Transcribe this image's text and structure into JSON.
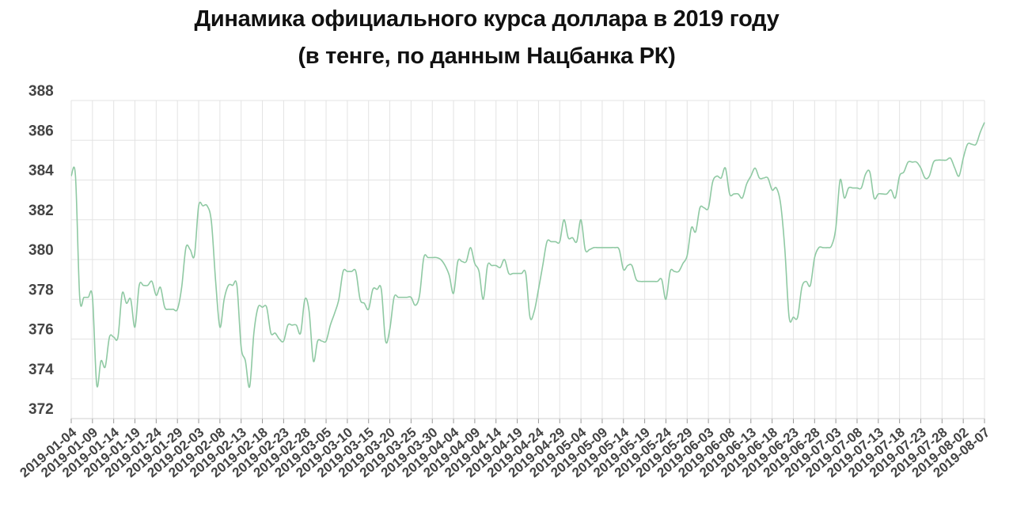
{
  "chart_data": {
    "type": "line",
    "title": "Динамика официального курса доллара в 2019 году",
    "subtitle": "(в тенге, по данным Нацбанка РК)",
    "xlabel": "",
    "ylabel": "",
    "ylim": [
      372,
      388
    ],
    "yticks": [
      372,
      374,
      376,
      378,
      380,
      382,
      384,
      386,
      388
    ],
    "x_start": "2019-01-04",
    "x_end": "2019-08-07",
    "xtick_labels": [
      "2019-01-04",
      "2019-01-09",
      "2019-01-14",
      "2019-01-19",
      "2019-01-24",
      "2019-01-29",
      "2019-02-03",
      "2019-02-08",
      "2019-02-13",
      "2019-02-18",
      "2019-02-23",
      "2019-02-28",
      "2019-03-05",
      "2019-03-10",
      "2019-03-15",
      "2019-03-20",
      "2019-03-25",
      "2019-03-30",
      "2019-04-04",
      "2019-04-09",
      "2019-04-14",
      "2019-04-19",
      "2019-04-24",
      "2019-04-29",
      "2019-05-04",
      "2019-05-09",
      "2019-05-14",
      "2019-05-19",
      "2019-05-24",
      "2019-05-29",
      "2019-06-03",
      "2019-06-08",
      "2019-06-13",
      "2019-06-18",
      "2019-06-23",
      "2019-06-28",
      "2019-07-03",
      "2019-07-08",
      "2019-07-13",
      "2019-07-18",
      "2019-07-23",
      "2019-07-28",
      "2019-08-02",
      "2019-08-07"
    ],
    "grid": true,
    "line_color": "#8fc9a3",
    "series": [
      {
        "name": "",
        "points": [
          [
            "2019-01-04",
            384.2
          ],
          [
            "2019-01-05",
            384.2
          ],
          [
            "2019-01-06",
            378.1
          ],
          [
            "2019-01-07",
            378.1
          ],
          [
            "2019-01-08",
            378.1
          ],
          [
            "2019-01-09",
            378.1
          ],
          [
            "2019-01-10",
            373.7
          ],
          [
            "2019-01-11",
            374.9
          ],
          [
            "2019-01-12",
            374.6
          ],
          [
            "2019-01-13",
            376.1
          ],
          [
            "2019-01-14",
            376.1
          ],
          [
            "2019-01-15",
            376.1
          ],
          [
            "2019-01-16",
            378.3
          ],
          [
            "2019-01-17",
            377.8
          ],
          [
            "2019-01-18",
            378.0
          ],
          [
            "2019-01-19",
            376.6
          ],
          [
            "2019-01-20",
            378.7
          ],
          [
            "2019-01-21",
            378.7
          ],
          [
            "2019-01-22",
            378.7
          ],
          [
            "2019-01-23",
            378.9
          ],
          [
            "2019-01-24",
            378.2
          ],
          [
            "2019-01-25",
            378.6
          ],
          [
            "2019-01-26",
            377.6
          ],
          [
            "2019-01-27",
            377.5
          ],
          [
            "2019-01-28",
            377.5
          ],
          [
            "2019-01-29",
            377.5
          ],
          [
            "2019-01-30",
            378.6
          ],
          [
            "2019-01-31",
            380.6
          ],
          [
            "2019-02-01",
            380.5
          ],
          [
            "2019-02-02",
            380.2
          ],
          [
            "2019-02-03",
            382.7
          ],
          [
            "2019-02-04",
            382.7
          ],
          [
            "2019-02-05",
            382.7
          ],
          [
            "2019-02-06",
            381.9
          ],
          [
            "2019-02-07",
            378.9
          ],
          [
            "2019-02-08",
            376.6
          ],
          [
            "2019-02-09",
            378.0
          ],
          [
            "2019-02-10",
            378.7
          ],
          [
            "2019-02-11",
            378.7
          ],
          [
            "2019-02-12",
            378.7
          ],
          [
            "2019-02-13",
            375.6
          ],
          [
            "2019-02-14",
            374.9
          ],
          [
            "2019-02-15",
            373.6
          ],
          [
            "2019-02-16",
            376.3
          ],
          [
            "2019-02-17",
            377.6
          ],
          [
            "2019-02-18",
            377.6
          ],
          [
            "2019-02-19",
            377.6
          ],
          [
            "2019-02-20",
            376.3
          ],
          [
            "2019-02-21",
            376.3
          ],
          [
            "2019-02-22",
            376.0
          ],
          [
            "2019-02-23",
            375.9
          ],
          [
            "2019-02-24",
            376.7
          ],
          [
            "2019-02-25",
            376.7
          ],
          [
            "2019-02-26",
            376.7
          ],
          [
            "2019-02-27",
            376.3
          ],
          [
            "2019-02-28",
            378.0
          ],
          [
            "2019-03-01",
            377.4
          ],
          [
            "2019-03-02",
            374.9
          ],
          [
            "2019-03-03",
            375.9
          ],
          [
            "2019-03-04",
            375.9
          ],
          [
            "2019-03-05",
            375.9
          ],
          [
            "2019-03-06",
            376.7
          ],
          [
            "2019-03-07",
            377.3
          ],
          [
            "2019-03-08",
            378.0
          ],
          [
            "2019-03-09",
            379.4
          ],
          [
            "2019-03-10",
            379.4
          ],
          [
            "2019-03-11",
            379.4
          ],
          [
            "2019-03-12",
            379.4
          ],
          [
            "2019-03-13",
            378.0
          ],
          [
            "2019-03-14",
            377.8
          ],
          [
            "2019-03-15",
            377.5
          ],
          [
            "2019-03-16",
            378.5
          ],
          [
            "2019-03-17",
            378.5
          ],
          [
            "2019-03-18",
            378.5
          ],
          [
            "2019-03-19",
            375.9
          ],
          [
            "2019-03-20",
            376.5
          ],
          [
            "2019-03-21",
            378.1
          ],
          [
            "2019-03-22",
            378.1
          ],
          [
            "2019-03-23",
            378.1
          ],
          [
            "2019-03-24",
            378.1
          ],
          [
            "2019-03-25",
            378.1
          ],
          [
            "2019-03-26",
            377.7
          ],
          [
            "2019-03-27",
            378.2
          ],
          [
            "2019-03-28",
            380.1
          ],
          [
            "2019-03-29",
            380.1
          ],
          [
            "2019-03-30",
            380.1
          ],
          [
            "2019-03-31",
            380.1
          ],
          [
            "2019-04-01",
            380.0
          ],
          [
            "2019-04-02",
            379.7
          ],
          [
            "2019-04-03",
            379.2
          ],
          [
            "2019-04-04",
            378.3
          ],
          [
            "2019-04-05",
            379.9
          ],
          [
            "2019-04-06",
            379.9
          ],
          [
            "2019-04-07",
            379.9
          ],
          [
            "2019-04-08",
            380.6
          ],
          [
            "2019-04-09",
            379.8
          ],
          [
            "2019-04-10",
            379.4
          ],
          [
            "2019-04-11",
            378.0
          ],
          [
            "2019-04-12",
            379.7
          ],
          [
            "2019-04-13",
            379.7
          ],
          [
            "2019-04-14",
            379.7
          ],
          [
            "2019-04-15",
            379.6
          ],
          [
            "2019-04-16",
            380.0
          ],
          [
            "2019-04-17",
            379.3
          ],
          [
            "2019-04-18",
            379.3
          ],
          [
            "2019-04-19",
            379.3
          ],
          [
            "2019-04-20",
            379.3
          ],
          [
            "2019-04-21",
            379.3
          ],
          [
            "2019-04-22",
            377.1
          ],
          [
            "2019-04-23",
            377.4
          ],
          [
            "2019-04-24",
            378.5
          ],
          [
            "2019-04-25",
            379.7
          ],
          [
            "2019-04-26",
            380.9
          ],
          [
            "2019-04-27",
            380.9
          ],
          [
            "2019-04-28",
            380.9
          ],
          [
            "2019-04-29",
            380.9
          ],
          [
            "2019-04-30",
            382.0
          ],
          [
            "2019-05-01",
            381.1
          ],
          [
            "2019-05-02",
            381.1
          ],
          [
            "2019-05-03",
            380.9
          ],
          [
            "2019-05-04",
            382.0
          ],
          [
            "2019-05-05",
            380.5
          ],
          [
            "2019-05-06",
            380.5
          ],
          [
            "2019-05-07",
            380.6
          ],
          [
            "2019-05-08",
            380.6
          ],
          [
            "2019-05-09",
            380.6
          ],
          [
            "2019-05-10",
            380.6
          ],
          [
            "2019-05-11",
            380.6
          ],
          [
            "2019-05-12",
            380.6
          ],
          [
            "2019-05-13",
            380.5
          ],
          [
            "2019-05-14",
            379.5
          ],
          [
            "2019-05-15",
            379.7
          ],
          [
            "2019-05-16",
            379.7
          ],
          [
            "2019-05-17",
            379.0
          ],
          [
            "2019-05-18",
            378.9
          ],
          [
            "2019-05-19",
            378.9
          ],
          [
            "2019-05-20",
            378.9
          ],
          [
            "2019-05-21",
            378.9
          ],
          [
            "2019-05-22",
            378.9
          ],
          [
            "2019-05-23",
            379.0
          ],
          [
            "2019-05-24",
            378.0
          ],
          [
            "2019-05-25",
            379.4
          ],
          [
            "2019-05-26",
            379.4
          ],
          [
            "2019-05-27",
            379.4
          ],
          [
            "2019-05-28",
            379.8
          ],
          [
            "2019-05-29",
            380.2
          ],
          [
            "2019-05-30",
            381.6
          ],
          [
            "2019-05-31",
            381.4
          ],
          [
            "2019-06-01",
            382.6
          ],
          [
            "2019-06-02",
            382.6
          ],
          [
            "2019-06-03",
            382.6
          ],
          [
            "2019-06-04",
            383.9
          ],
          [
            "2019-06-05",
            384.2
          ],
          [
            "2019-06-06",
            384.1
          ],
          [
            "2019-06-07",
            384.6
          ],
          [
            "2019-06-08",
            383.3
          ],
          [
            "2019-06-09",
            383.3
          ],
          [
            "2019-06-10",
            383.3
          ],
          [
            "2019-06-11",
            383.1
          ],
          [
            "2019-06-12",
            383.8
          ],
          [
            "2019-06-13",
            384.2
          ],
          [
            "2019-06-14",
            384.6
          ],
          [
            "2019-06-15",
            384.1
          ],
          [
            "2019-06-16",
            384.1
          ],
          [
            "2019-06-17",
            384.1
          ],
          [
            "2019-06-18",
            383.5
          ],
          [
            "2019-06-19",
            383.6
          ],
          [
            "2019-06-20",
            382.8
          ],
          [
            "2019-06-21",
            380.5
          ],
          [
            "2019-06-22",
            377.1
          ],
          [
            "2019-06-23",
            377.1
          ],
          [
            "2019-06-24",
            377.1
          ],
          [
            "2019-06-25",
            378.6
          ],
          [
            "2019-06-26",
            378.9
          ],
          [
            "2019-06-27",
            378.7
          ],
          [
            "2019-06-28",
            380.1
          ],
          [
            "2019-06-29",
            380.6
          ],
          [
            "2019-06-30",
            380.6
          ],
          [
            "2019-07-01",
            380.6
          ],
          [
            "2019-07-02",
            380.7
          ],
          [
            "2019-07-03",
            381.6
          ],
          [
            "2019-07-04",
            384.0
          ],
          [
            "2019-07-05",
            383.1
          ],
          [
            "2019-07-06",
            383.6
          ],
          [
            "2019-07-07",
            383.6
          ],
          [
            "2019-07-08",
            383.6
          ],
          [
            "2019-07-09",
            383.6
          ],
          [
            "2019-07-10",
            384.3
          ],
          [
            "2019-07-11",
            384.4
          ],
          [
            "2019-07-12",
            383.1
          ],
          [
            "2019-07-13",
            383.3
          ],
          [
            "2019-07-14",
            383.3
          ],
          [
            "2019-07-15",
            383.3
          ],
          [
            "2019-07-16",
            383.5
          ],
          [
            "2019-07-17",
            383.1
          ],
          [
            "2019-07-18",
            384.2
          ],
          [
            "2019-07-19",
            384.4
          ],
          [
            "2019-07-20",
            384.9
          ],
          [
            "2019-07-21",
            384.9
          ],
          [
            "2019-07-22",
            384.9
          ],
          [
            "2019-07-23",
            384.6
          ],
          [
            "2019-07-24",
            384.1
          ],
          [
            "2019-07-25",
            384.2
          ],
          [
            "2019-07-26",
            384.9
          ],
          [
            "2019-07-27",
            385.0
          ],
          [
            "2019-07-28",
            385.0
          ],
          [
            "2019-07-29",
            385.0
          ],
          [
            "2019-07-30",
            385.1
          ],
          [
            "2019-07-31",
            384.6
          ],
          [
            "2019-08-01",
            384.2
          ],
          [
            "2019-08-02",
            385.1
          ],
          [
            "2019-08-03",
            385.8
          ],
          [
            "2019-08-04",
            385.8
          ],
          [
            "2019-08-05",
            385.8
          ],
          [
            "2019-08-06",
            386.4
          ],
          [
            "2019-08-07",
            386.9
          ]
        ]
      }
    ]
  }
}
